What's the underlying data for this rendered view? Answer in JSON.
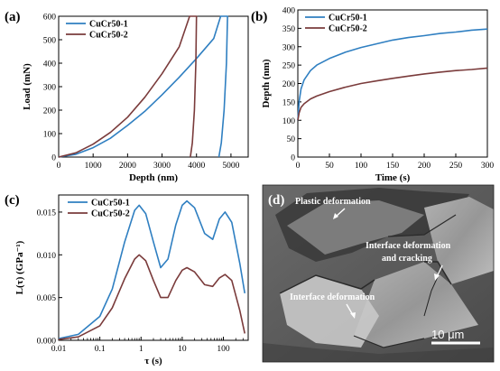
{
  "colors": {
    "series1": "#2f7fc1",
    "series2": "#7a3b3b",
    "axis": "#000000"
  },
  "chart_data": [
    {
      "panel": "(a)",
      "type": "line",
      "xlabel": "Depth (nm)",
      "ylabel": "Load (mN)",
      "xlim": [
        0,
        5500
      ],
      "ylim": [
        0,
        600
      ],
      "xticks": [
        0,
        1000,
        2000,
        3000,
        4000,
        5000
      ],
      "yticks": [
        0,
        100,
        200,
        300,
        400,
        500,
        600
      ],
      "legend": "top-left",
      "series": [
        {
          "name": "CuCr50-1",
          "color": "#2f7fc1",
          "x": [
            0,
            500,
            1000,
            1500,
            2000,
            2500,
            3000,
            3500,
            4000,
            4500,
            4700,
            4900,
            4870,
            4800,
            4720,
            4650
          ],
          "y": [
            0,
            12,
            40,
            80,
            135,
            195,
            265,
            340,
            420,
            505,
            600,
            600,
            400,
            200,
            60,
            0
          ]
        },
        {
          "name": "CuCr50-2",
          "color": "#7a3b3b",
          "x": [
            0,
            500,
            1000,
            1500,
            2000,
            2500,
            3000,
            3500,
            3800,
            4000,
            3980,
            3940,
            3880,
            3820
          ],
          "y": [
            0,
            18,
            55,
            105,
            170,
            255,
            355,
            470,
            600,
            600,
            400,
            200,
            60,
            0
          ]
        }
      ]
    },
    {
      "panel": "(b)",
      "type": "line",
      "xlabel": "Time (s)",
      "ylabel": "Depth (nm)",
      "xlim": [
        0,
        300
      ],
      "ylim": [
        0,
        400
      ],
      "xticks": [
        0,
        50,
        100,
        150,
        200,
        250,
        300
      ],
      "yticks": [
        0,
        50,
        100,
        150,
        200,
        250,
        300,
        350,
        400
      ],
      "legend": "top-left",
      "series": [
        {
          "name": "CuCr50-1",
          "color": "#2f7fc1",
          "x": [
            0,
            2,
            5,
            10,
            20,
            30,
            50,
            75,
            100,
            125,
            150,
            175,
            200,
            225,
            250,
            275,
            300
          ],
          "y": [
            100,
            150,
            185,
            210,
            235,
            250,
            268,
            285,
            298,
            308,
            318,
            325,
            330,
            336,
            340,
            345,
            348
          ]
        },
        {
          "name": "CuCr50-2",
          "color": "#7a3b3b",
          "x": [
            0,
            2,
            5,
            10,
            20,
            30,
            50,
            75,
            100,
            125,
            150,
            175,
            200,
            225,
            250,
            275,
            300
          ],
          "y": [
            100,
            120,
            135,
            145,
            158,
            166,
            178,
            190,
            200,
            207,
            214,
            220,
            226,
            231,
            235,
            238,
            242
          ]
        }
      ]
    },
    {
      "panel": "(c)",
      "type": "line",
      "xscale": "log",
      "xlabel": "τ (s)",
      "ylabel": "L(τ) (GPa⁻¹)",
      "xlim": [
        0.01,
        400
      ],
      "ylim": [
        0,
        0.017
      ],
      "xticks": [
        0.01,
        0.1,
        1,
        10,
        100
      ],
      "xtick_labels": [
        "0.01",
        "0.1",
        "1",
        "10",
        "100"
      ],
      "yticks": [
        0,
        0.005,
        0.01,
        0.015
      ],
      "ytick_labels": [
        "0.000",
        "0.005",
        "0.010",
        "0.015"
      ],
      "legend": "top-left",
      "series": [
        {
          "name": "CuCr50-1",
          "color": "#2f7fc1",
          "x": [
            0.01,
            0.03,
            0.1,
            0.2,
            0.4,
            0.7,
            0.9,
            1.3,
            2,
            3,
            4.5,
            7,
            10,
            13,
            20,
            35,
            55,
            80,
            110,
            160,
            250,
            330
          ],
          "y": [
            0.0002,
            0.0007,
            0.0028,
            0.006,
            0.0115,
            0.0152,
            0.0158,
            0.0148,
            0.0115,
            0.0085,
            0.0095,
            0.0135,
            0.0158,
            0.0163,
            0.0155,
            0.0125,
            0.0118,
            0.0142,
            0.015,
            0.0138,
            0.009,
            0.0055
          ]
        },
        {
          "name": "CuCr50-2",
          "color": "#7a3b3b",
          "x": [
            0.01,
            0.03,
            0.1,
            0.2,
            0.4,
            0.7,
            0.9,
            1.3,
            2,
            3,
            4.5,
            7,
            10,
            13,
            20,
            35,
            55,
            80,
            110,
            160,
            250,
            330
          ],
          "y": [
            0.0001,
            0.0004,
            0.0017,
            0.0038,
            0.0072,
            0.0095,
            0.01,
            0.0093,
            0.007,
            0.005,
            0.005,
            0.007,
            0.0082,
            0.0085,
            0.008,
            0.0065,
            0.0063,
            0.0073,
            0.0077,
            0.007,
            0.0035,
            0.0008
          ]
        }
      ]
    }
  ],
  "panel_d": {
    "letter": "(d)",
    "annotations": {
      "plastic": "Plastic deformation",
      "interface_line1": "Interface deformation",
      "interface_line2": "and cracking",
      "interface2": "Interface deformation"
    },
    "scale_bar": "10 μm"
  }
}
